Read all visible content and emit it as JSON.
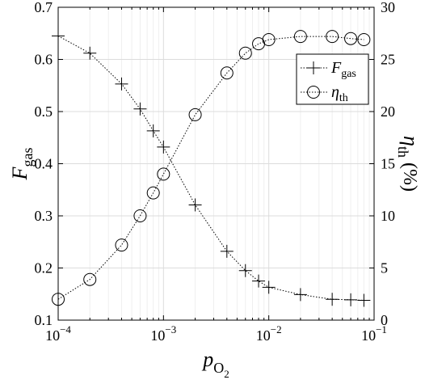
{
  "chart_data": {
    "type": "line",
    "x_scale": "log",
    "grid": true,
    "legend_position": "top-right",
    "xlim": [
      0.0001,
      0.1
    ],
    "ylim_left": [
      0.1,
      0.7
    ],
    "ylim_right": [
      0,
      30
    ],
    "x_tick_labels": [
      {
        "value": 0.0001,
        "base": "10",
        "exp": "−4"
      },
      {
        "value": 0.001,
        "base": "10",
        "exp": "−3"
      },
      {
        "value": 0.01,
        "base": "10",
        "exp": "−2"
      },
      {
        "value": 0.1,
        "base": "10",
        "exp": "−1"
      }
    ],
    "y_left_ticks": [
      "0.1",
      "0.2",
      "0.3",
      "0.4",
      "0.5",
      "0.6",
      "0.7"
    ],
    "y_right_ticks": [
      "0",
      "5",
      "10",
      "15",
      "20",
      "25",
      "30"
    ],
    "xlabel": {
      "main": "p",
      "sub": "O",
      "subsub": "2"
    },
    "ylabel_left": {
      "main": "F",
      "sub": "gas"
    },
    "ylabel_right": {
      "main": "η",
      "sub": "th",
      "suffix": " (%)"
    },
    "x": [
      0.0001,
      0.0002,
      0.0004,
      0.0006,
      0.0008,
      0.001,
      0.002,
      0.004,
      0.006,
      0.008,
      0.01,
      0.02,
      0.04,
      0.06,
      0.08
    ],
    "series": [
      {
        "name": {
          "main": "F",
          "sub": "gas"
        },
        "axis": "left",
        "marker": "plus",
        "values": [
          0.645,
          0.612,
          0.553,
          0.505,
          0.463,
          0.432,
          0.321,
          0.232,
          0.195,
          0.175,
          0.163,
          0.149,
          0.14,
          0.139,
          0.138
        ]
      },
      {
        "name": {
          "main": "η",
          "sub": "th"
        },
        "axis": "right",
        "marker": "circle",
        "values": [
          2.0,
          3.9,
          7.2,
          10.0,
          12.2,
          14.0,
          19.7,
          23.7,
          25.6,
          26.5,
          26.9,
          27.2,
          27.2,
          27.0,
          26.9
        ]
      }
    ]
  }
}
